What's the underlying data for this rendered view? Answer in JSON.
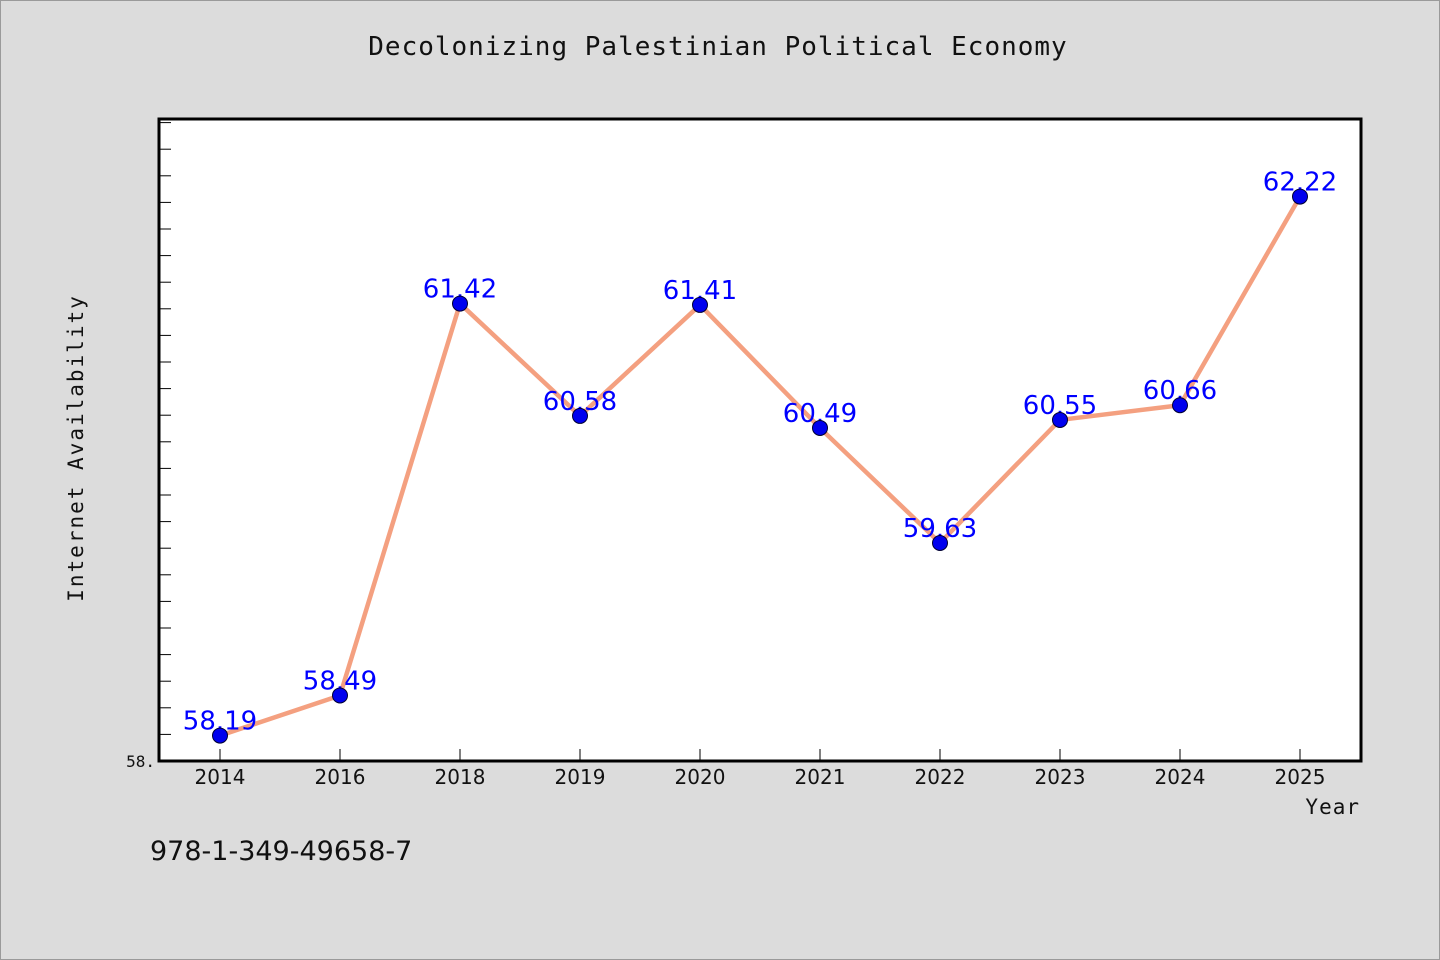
{
  "chart_data": {
    "type": "line",
    "title": "Decolonizing Palestinian Political Economy",
    "xlabel": "Year",
    "ylabel": "Internet Availability",
    "categories": [
      "2014",
      "2016",
      "2018",
      "2019",
      "2020",
      "2021",
      "2022",
      "2023",
      "2024",
      "2025"
    ],
    "series": [
      {
        "values": [
          58.19,
          58.49,
          61.42,
          60.58,
          61.41,
          60.49,
          59.63,
          60.55,
          60.66,
          62.22
        ],
        "labels": [
          "58.19",
          "58.49",
          "61.42",
          "60.58",
          "61.41",
          "60.49",
          "59.63",
          "60.55",
          "60.66",
          "62.22"
        ]
      }
    ],
    "ylim": [
      58,
      62.8
    ],
    "y_tick_labels": [
      "58."
    ],
    "grid": false,
    "line_color": "#f4a080",
    "marker_color": "#0000ee",
    "label_color": "#0000ff"
  },
  "footer": {
    "isbn": "978-1-349-49658-7"
  }
}
